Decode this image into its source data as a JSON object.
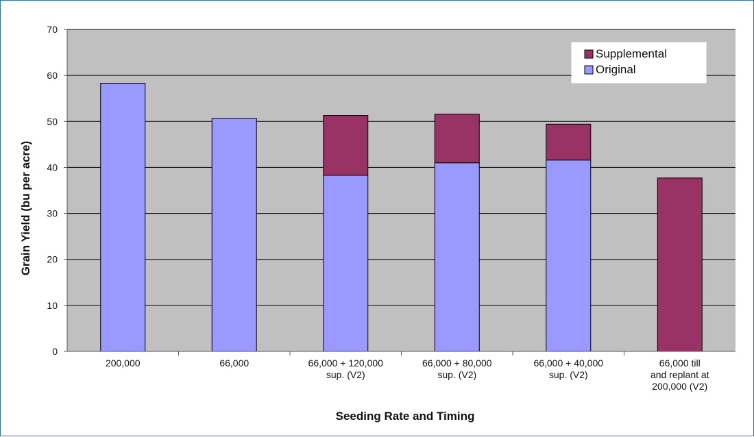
{
  "chart_data": {
    "type": "bar",
    "stacked": true,
    "title": "",
    "xlabel": "Seeding Rate and Timing",
    "ylabel": "Grain Yield (bu per acre)",
    "ylim": [
      0,
      70
    ],
    "yticks": [
      0,
      10,
      20,
      30,
      40,
      50,
      60,
      70
    ],
    "grid": true,
    "legend_position": "top-right",
    "categories": [
      [
        "200,000"
      ],
      [
        "66,000"
      ],
      [
        "66,000 + 120,000",
        "sup. (V2)"
      ],
      [
        "66,000 + 80,000",
        "sup. (V2)"
      ],
      [
        "66,000 + 40,000",
        "sup. (V2)"
      ],
      [
        "66,000 till",
        "and replant at",
        "200,000 (V2)"
      ]
    ],
    "series": [
      {
        "name": "Original",
        "color": "#9999ff",
        "values": [
          58.3,
          50.7,
          38.3,
          41.0,
          41.6,
          0
        ]
      },
      {
        "name": "Supplemental",
        "color": "#993366",
        "values": [
          0,
          0,
          13.0,
          10.6,
          7.8,
          37.7
        ]
      }
    ],
    "legend_order": [
      "Supplemental",
      "Original"
    ],
    "plot_background": "#c0c0c0"
  }
}
